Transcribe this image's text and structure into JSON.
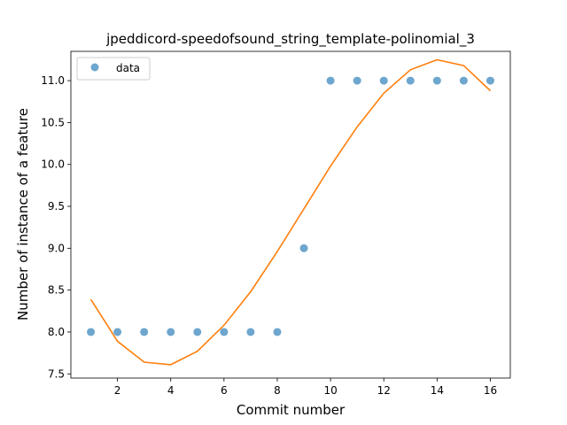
{
  "chart_data": {
    "type": "scatter",
    "title": "jpeddicord-speedofsound_string_template-polinomial_3",
    "xlabel": "Commit number",
    "ylabel": "Number of instance of a feature",
    "xlim": [
      0.25,
      16.75
    ],
    "ylim": [
      7.45,
      11.35
    ],
    "xticks": [
      2,
      4,
      6,
      8,
      10,
      12,
      14,
      16
    ],
    "xtick_labels": [
      "2",
      "4",
      "6",
      "8",
      "10",
      "12",
      "14",
      "16"
    ],
    "yticks": [
      7.5,
      8.0,
      8.5,
      9.0,
      9.5,
      10.0,
      10.5,
      11.0
    ],
    "ytick_labels": [
      "7.5",
      "8.0",
      "8.5",
      "9.0",
      "9.5",
      "10.0",
      "10.5",
      "11.0"
    ],
    "legend": {
      "position": "top-left",
      "entries": [
        "data"
      ]
    },
    "grid": false,
    "series": [
      {
        "name": "data",
        "kind": "scatter",
        "color": "#1f77b4",
        "x": [
          1,
          2,
          3,
          4,
          5,
          6,
          7,
          8,
          9,
          10,
          11,
          12,
          13,
          14,
          15,
          16
        ],
        "y": [
          8,
          8,
          8,
          8,
          8,
          8,
          8,
          8,
          9,
          11,
          11,
          11,
          11,
          11,
          11,
          11
        ]
      },
      {
        "kind": "line",
        "color": "#ff7f0e",
        "x": [
          1,
          2,
          3,
          4,
          5,
          6,
          7,
          8,
          9,
          10,
          11,
          12,
          13,
          14,
          15,
          16
        ],
        "y": [
          8.39,
          7.89,
          7.64,
          7.61,
          7.77,
          8.08,
          8.48,
          8.96,
          9.47,
          9.98,
          10.45,
          10.85,
          11.13,
          11.25,
          11.18,
          10.88
        ]
      }
    ]
  }
}
